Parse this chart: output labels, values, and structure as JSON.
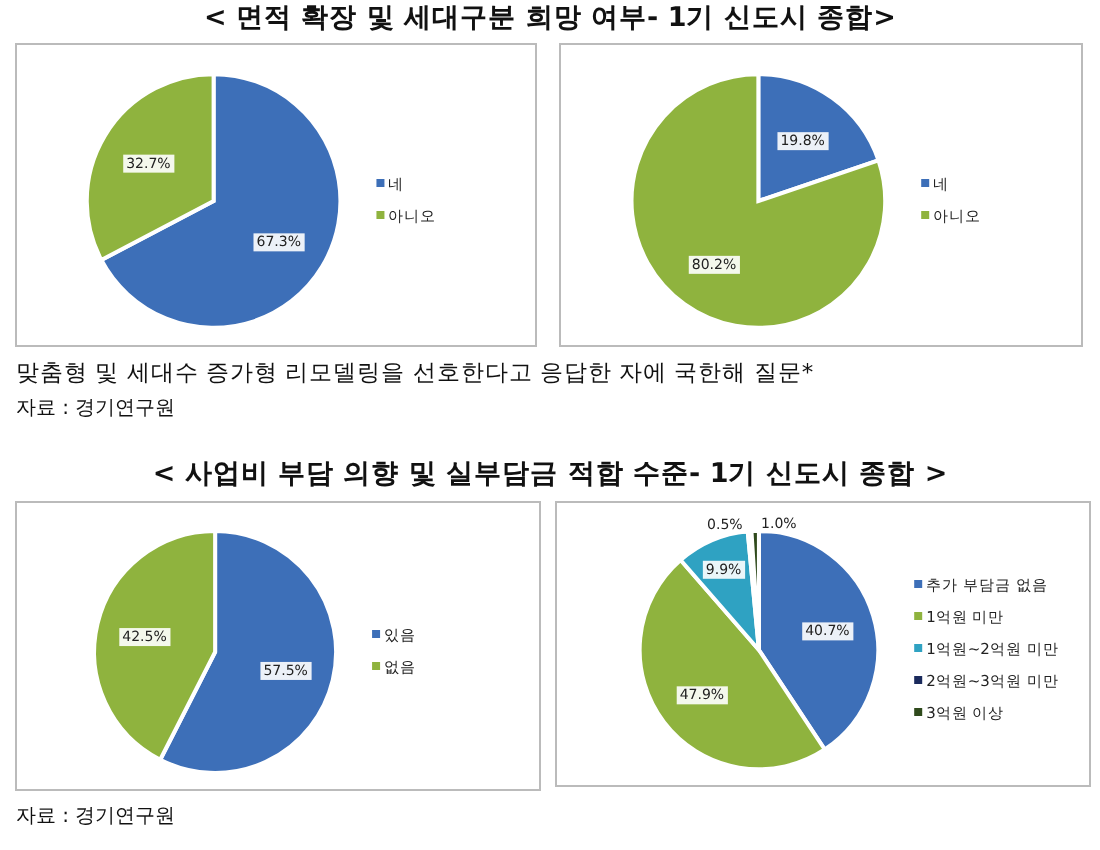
{
  "chart_data": [
    {
      "type": "pie",
      "title": "< 면적 확장 및 세대구분 희망 여부- 1기 신도시 종합>",
      "categories": [
        "네",
        "아니오"
      ],
      "values": [
        67.3,
        32.7
      ],
      "value_labels": [
        "67.3%",
        "32.7%"
      ],
      "colors": [
        "#3d6fb8",
        "#8fb33e"
      ],
      "legend": "right",
      "annotations": [
        "맞춤형 및 세대수 증가형 리모델링을 선호한다고 응답한 자에 국한해 질문*",
        "자료 : 경기연구원"
      ]
    },
    {
      "type": "pie",
      "categories": [
        "네",
        "아니오"
      ],
      "values": [
        19.8,
        80.2
      ],
      "value_labels": [
        "19.8%",
        "80.2%"
      ],
      "colors": [
        "#3d6fb8",
        "#8fb33e"
      ],
      "legend": "right"
    },
    {
      "type": "pie",
      "title": "< 사업비 부담 의향 및 실부담금 적합 수준- 1기 신도시 종합 >",
      "categories": [
        "있음",
        "없음"
      ],
      "values": [
        57.5,
        42.5
      ],
      "value_labels": [
        "57.5%",
        "42.5%"
      ],
      "colors": [
        "#3d6fb8",
        "#8fb33e"
      ],
      "legend": "right",
      "annotations": [
        "자료 : 경기연구원"
      ]
    },
    {
      "type": "pie",
      "categories": [
        "추가 부담금 없음",
        "1억원 미만",
        "1억원~2억원 미만",
        "2억원~3억원 미만",
        "3억원 이상"
      ],
      "values": [
        40.7,
        47.9,
        9.9,
        0.5,
        1.0
      ],
      "value_labels": [
        "40.7%",
        "47.9%",
        "9.9%",
        "0.5%",
        "1.0%"
      ],
      "colors": [
        "#3d6fb8",
        "#8fb33e",
        "#2fa2c2",
        "#1a2a5c",
        "#2f4a1c"
      ],
      "legend": "right"
    }
  ]
}
